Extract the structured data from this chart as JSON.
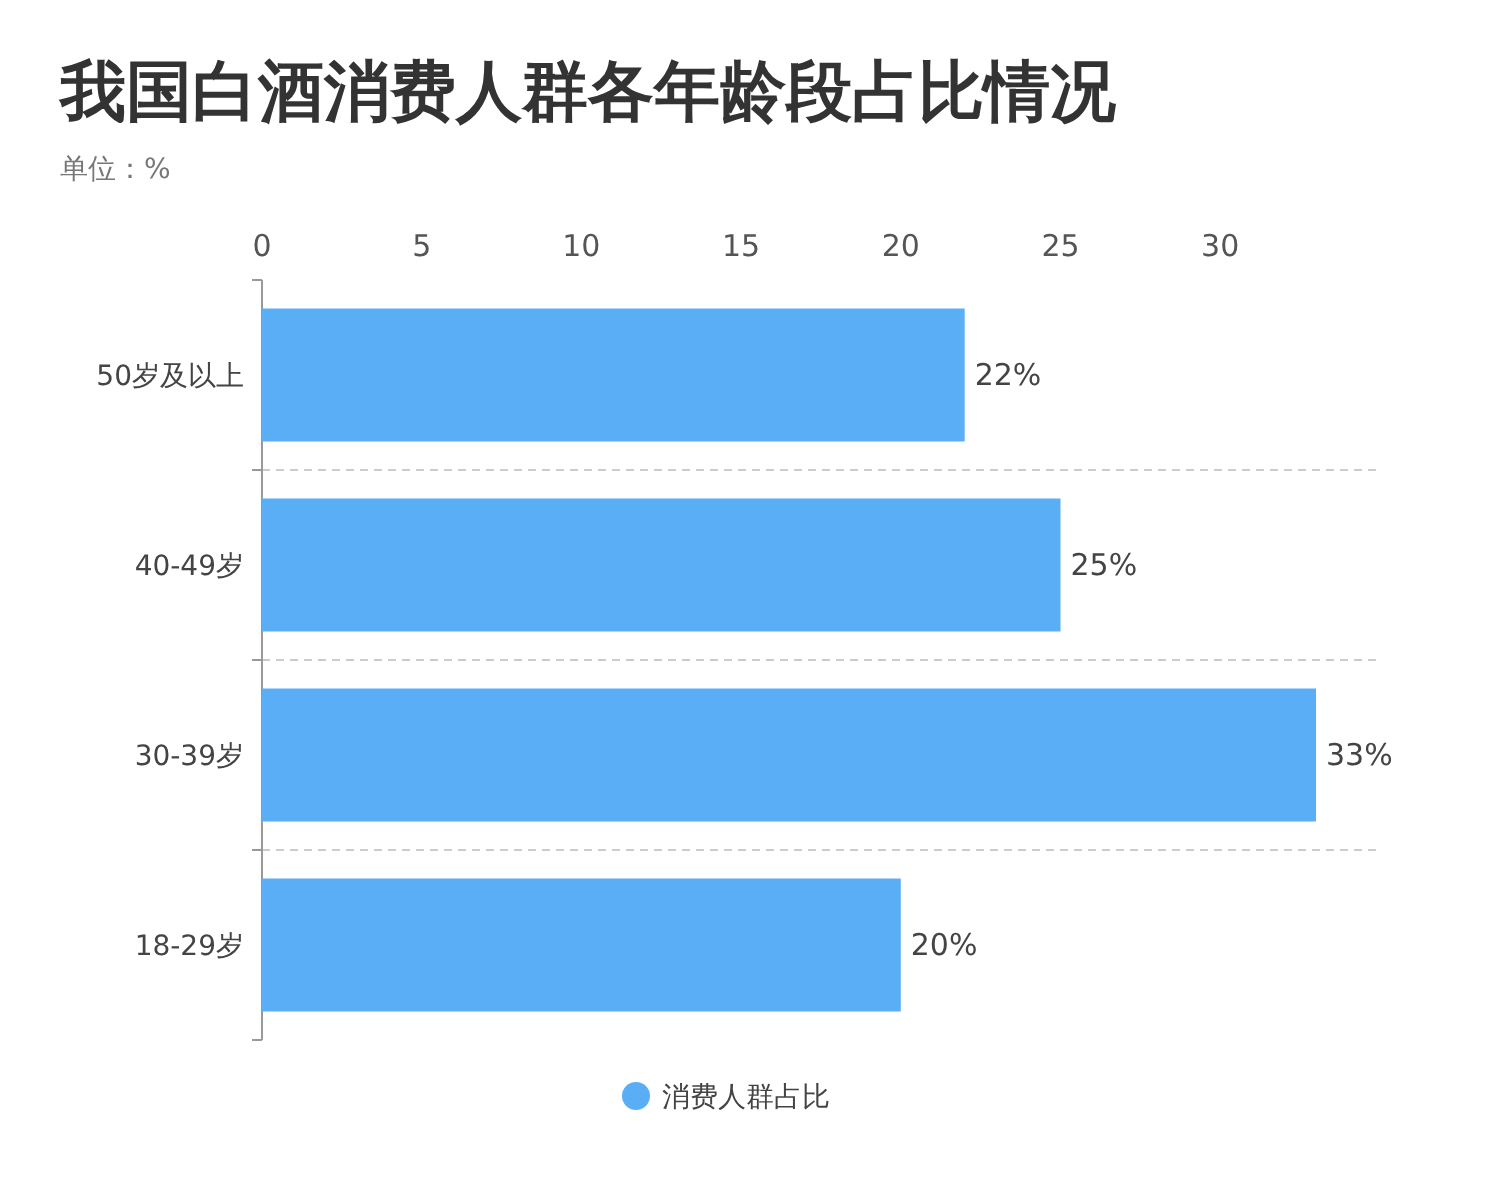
{
  "chart_data": {
    "type": "bar",
    "orientation": "horizontal",
    "title": "我国白酒消费人群各年龄段占比情况",
    "subtitle": "单位：%",
    "categories": [
      "50岁及以上",
      "40-49岁",
      "30-39岁",
      "18-29岁"
    ],
    "series": [
      {
        "name": "消费人群占比",
        "color": "#5aaef5",
        "values": [
          22,
          25,
          33,
          20
        ],
        "value_labels": [
          "22%",
          "25%",
          "33%",
          "20%"
        ]
      }
    ],
    "xlim": [
      0,
      33
    ],
    "xticks": [
      0,
      5,
      10,
      15,
      20,
      25,
      30
    ],
    "grid": "y",
    "legend": "bottom"
  }
}
